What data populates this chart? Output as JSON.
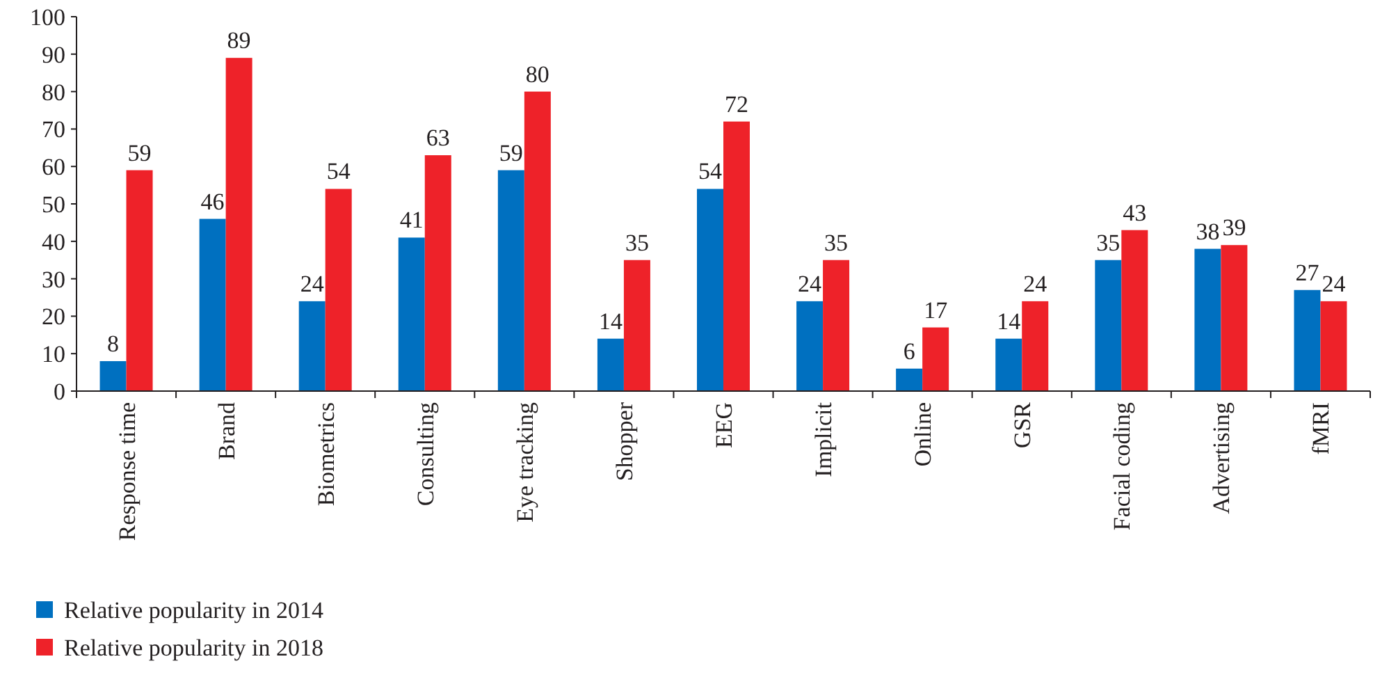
{
  "chart_data": {
    "type": "bar",
    "categories": [
      "Response time",
      "Brand",
      "Biometrics",
      "Consulting",
      "Eye tracking",
      "Shopper",
      "EEG",
      "Implicit",
      "Online",
      "GSR",
      "Facial coding",
      "Advertising",
      "fMRI"
    ],
    "series": [
      {
        "name": "Relative popularity in 2014",
        "color": "#0070c0",
        "values": [
          8,
          46,
          24,
          41,
          59,
          14,
          54,
          24,
          6,
          14,
          35,
          38,
          27
        ]
      },
      {
        "name": "Relative popularity in 2018",
        "color": "#ee2229",
        "values": [
          59,
          89,
          54,
          63,
          80,
          35,
          72,
          35,
          17,
          24,
          43,
          39,
          24
        ]
      }
    ],
    "ylim": [
      0,
      100
    ],
    "yticks": [
      0,
      10,
      20,
      30,
      40,
      50,
      60,
      70,
      80,
      90,
      100
    ],
    "data_labels": true,
    "grid": false,
    "legend": "bottom left"
  }
}
